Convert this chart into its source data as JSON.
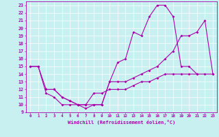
{
  "xlabel": "Windchill (Refroidissement éolien,°C)",
  "xlim": [
    -0.5,
    23.5
  ],
  "ylim": [
    9,
    23.5
  ],
  "xticks": [
    0,
    1,
    2,
    3,
    4,
    5,
    6,
    7,
    8,
    9,
    10,
    11,
    12,
    13,
    14,
    15,
    16,
    17,
    18,
    19,
    20,
    21,
    22,
    23
  ],
  "yticks": [
    9,
    10,
    11,
    12,
    13,
    14,
    15,
    16,
    17,
    18,
    19,
    20,
    21,
    22,
    23
  ],
  "color": "#aa00aa",
  "bg_color": "#c8f0f0",
  "curve1": {
    "x": [
      0,
      1,
      2,
      3,
      4,
      5,
      6,
      7,
      8,
      9,
      10,
      11,
      12,
      13,
      14,
      15,
      16,
      17,
      18,
      19,
      20,
      21
    ],
    "y": [
      15,
      15,
      11.5,
      11,
      10,
      10,
      10,
      9.5,
      10,
      10,
      13,
      15.5,
      16,
      19.5,
      19,
      21.5,
      23,
      23,
      21.5,
      15,
      15,
      14
    ]
  },
  "curve2": {
    "x": [
      0,
      1,
      2,
      3,
      4,
      5,
      6,
      7,
      8,
      9,
      10,
      11,
      12,
      13,
      14,
      15,
      16,
      17,
      18,
      19,
      20,
      21,
      22,
      23
    ],
    "y": [
      15,
      15,
      12,
      12,
      11,
      10.5,
      10,
      10,
      10,
      10,
      13,
      13,
      13,
      13.5,
      14,
      14.5,
      15,
      16,
      17,
      19,
      19,
      19.5,
      21,
      14
    ]
  },
  "curve3": {
    "x": [
      2,
      3,
      4,
      5,
      6,
      7,
      8,
      9,
      10,
      11,
      12,
      13,
      14,
      15,
      16,
      17,
      18,
      19,
      20,
      21,
      22,
      23
    ],
    "y": [
      12,
      12,
      11,
      10.5,
      10,
      10,
      11.5,
      11.5,
      12,
      12,
      12,
      12.5,
      13,
      13,
      13.5,
      14,
      14,
      14,
      14,
      14,
      14,
      14
    ]
  }
}
